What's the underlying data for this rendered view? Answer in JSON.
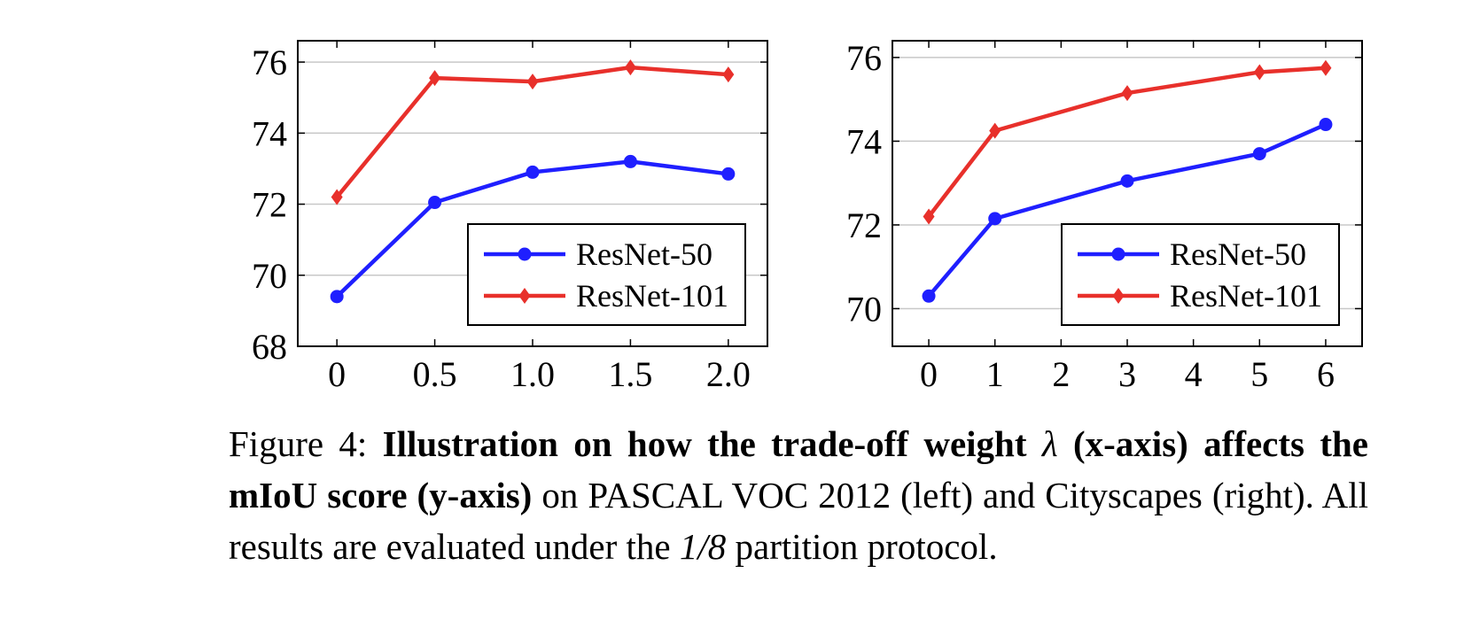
{
  "chart_data": [
    {
      "type": "line",
      "x": [
        0,
        0.5,
        1.0,
        1.5,
        2.0
      ],
      "xticks": [
        "0",
        "0.5",
        "1.0",
        "1.5",
        "2.0"
      ],
      "yticks": [
        "68",
        "70",
        "72",
        "74",
        "76"
      ],
      "ylim": [
        68,
        76.6
      ],
      "xlim": [
        -0.2,
        2.2
      ],
      "grid": "horizontal",
      "legend": "lower-right",
      "series": [
        {
          "name": "ResNet-50",
          "color": "#1f1fff",
          "marker": "circle",
          "values": [
            69.4,
            72.05,
            72.9,
            73.2,
            72.85
          ]
        },
        {
          "name": "ResNet-101",
          "color": "#e8302b",
          "marker": "diamond",
          "values": [
            72.2,
            75.55,
            75.45,
            75.85,
            75.65
          ]
        }
      ]
    },
    {
      "type": "line",
      "x": [
        0,
        1,
        3,
        5,
        6
      ],
      "xticks": [
        "0",
        "1",
        "2",
        "3",
        "4",
        "5",
        "6"
      ],
      "xtick_values": [
        0,
        1,
        2,
        3,
        4,
        5,
        6
      ],
      "yticks": [
        "70",
        "72",
        "74",
        "76"
      ],
      "ylim": [
        69.1,
        76.4
      ],
      "xlim": [
        -0.55,
        6.55
      ],
      "grid": "horizontal",
      "legend": "lower-right",
      "series": [
        {
          "name": "ResNet-50",
          "color": "#1f1fff",
          "marker": "circle",
          "values": [
            70.3,
            72.15,
            73.05,
            73.7,
            74.4
          ]
        },
        {
          "name": "ResNet-101",
          "color": "#e8302b",
          "marker": "diamond",
          "values": [
            72.2,
            74.25,
            75.15,
            75.65,
            75.75
          ]
        }
      ]
    }
  ],
  "caption": {
    "prefix": "Figure 4: ",
    "bold_a": "Illustration on how the trade-off weight ",
    "lambda": "λ",
    "bold_b": " (x-axis) affects the mIoU score (y-axis)",
    "rest_a": " on PASCAL VOC 2012 (left) and Cityscapes (right). All results are evaluated under the ",
    "fraction": "1/8",
    "rest_b": " partition protocol."
  }
}
